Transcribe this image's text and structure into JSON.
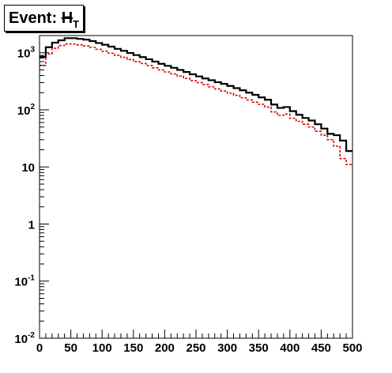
{
  "title": {
    "prefix": "Event: ",
    "symbol": "H",
    "subscript": "T"
  },
  "chart_data": {
    "type": "line",
    "style": "step-histogram",
    "x_scale": "linear",
    "y_scale": "log",
    "xlim": [
      0,
      500
    ],
    "ylim": [
      0.01,
      2000
    ],
    "x_ticks": [
      0,
      50,
      100,
      150,
      200,
      250,
      300,
      350,
      400,
      450,
      500
    ],
    "y_ticks": [
      {
        "value": 0.01,
        "base": "10",
        "exp": "-2"
      },
      {
        "value": 0.1,
        "base": "10",
        "exp": "-1"
      },
      {
        "value": 1,
        "base": "1",
        "exp": ""
      },
      {
        "value": 10,
        "base": "10",
        "exp": ""
      },
      {
        "value": 100,
        "base": "10",
        "exp": "2"
      },
      {
        "value": 1000,
        "base": "10",
        "exp": "3"
      }
    ],
    "bin_edges": [
      0,
      10,
      20,
      30,
      40,
      50,
      60,
      70,
      80,
      90,
      100,
      110,
      120,
      130,
      140,
      150,
      160,
      170,
      180,
      190,
      200,
      210,
      220,
      230,
      240,
      250,
      260,
      270,
      280,
      290,
      300,
      310,
      320,
      330,
      340,
      350,
      360,
      370,
      380,
      390,
      400,
      410,
      420,
      430,
      440,
      450,
      460,
      470,
      480,
      490,
      500
    ],
    "series": [
      {
        "color": "#000000",
        "dash": "solid",
        "values": [
          850,
          1250,
          1500,
          1650,
          1800,
          1800,
          1750,
          1700,
          1600,
          1480,
          1380,
          1280,
          1170,
          1080,
          990,
          910,
          840,
          770,
          700,
          640,
          590,
          545,
          500,
          460,
          420,
          385,
          355,
          330,
          305,
          285,
          262,
          240,
          220,
          200,
          183,
          165,
          150,
          124,
          108,
          112,
          95,
          82,
          72,
          65,
          56,
          47,
          38,
          36,
          29,
          19
        ]
      },
      {
        "color": "#dd0000",
        "dash": "dashed",
        "values": [
          600,
          950,
          1200,
          1340,
          1430,
          1420,
          1380,
          1320,
          1240,
          1150,
          1060,
          980,
          900,
          830,
          760,
          700,
          650,
          600,
          545,
          500,
          460,
          425,
          390,
          355,
          325,
          300,
          277,
          253,
          232,
          213,
          196,
          180,
          163,
          149,
          136,
          125,
          112,
          92,
          80,
          84,
          71,
          63,
          56,
          50,
          42,
          36,
          30,
          23,
          14,
          11
        ]
      }
    ]
  }
}
